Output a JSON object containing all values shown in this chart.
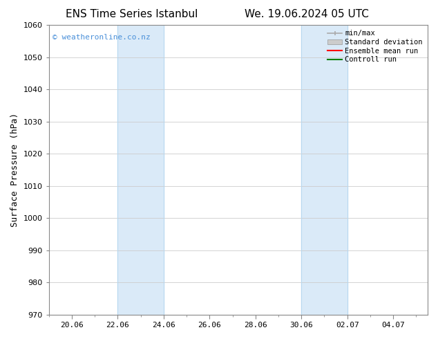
{
  "title_left": "ENS Time Series Istanbul",
  "title_right": "We. 19.06.2024 05 UTC",
  "ylabel": "Surface Pressure (hPa)",
  "ylim": [
    970,
    1060
  ],
  "yticks": [
    970,
    980,
    990,
    1000,
    1010,
    1020,
    1030,
    1040,
    1050,
    1060
  ],
  "xtick_labels": [
    "20.06",
    "22.06",
    "24.06",
    "26.06",
    "28.06",
    "30.06",
    "02.07",
    "04.07"
  ],
  "xtick_positions": [
    0,
    2,
    4,
    6,
    8,
    10,
    12,
    14
  ],
  "xlim": [
    -1,
    15.5
  ],
  "shaded_regions": [
    {
      "x_start": 2,
      "x_end": 4
    },
    {
      "x_start": 10,
      "x_end": 12
    }
  ],
  "shaded_color": "#daeaf8",
  "shaded_line_color": "#b8d8f0",
  "watermark_text": "© weatheronline.co.nz",
  "watermark_color": "#4a90d9",
  "bg_color": "#ffffff",
  "grid_color": "#cccccc",
  "title_fontsize": 11,
  "tick_fontsize": 8,
  "ylabel_fontsize": 9
}
